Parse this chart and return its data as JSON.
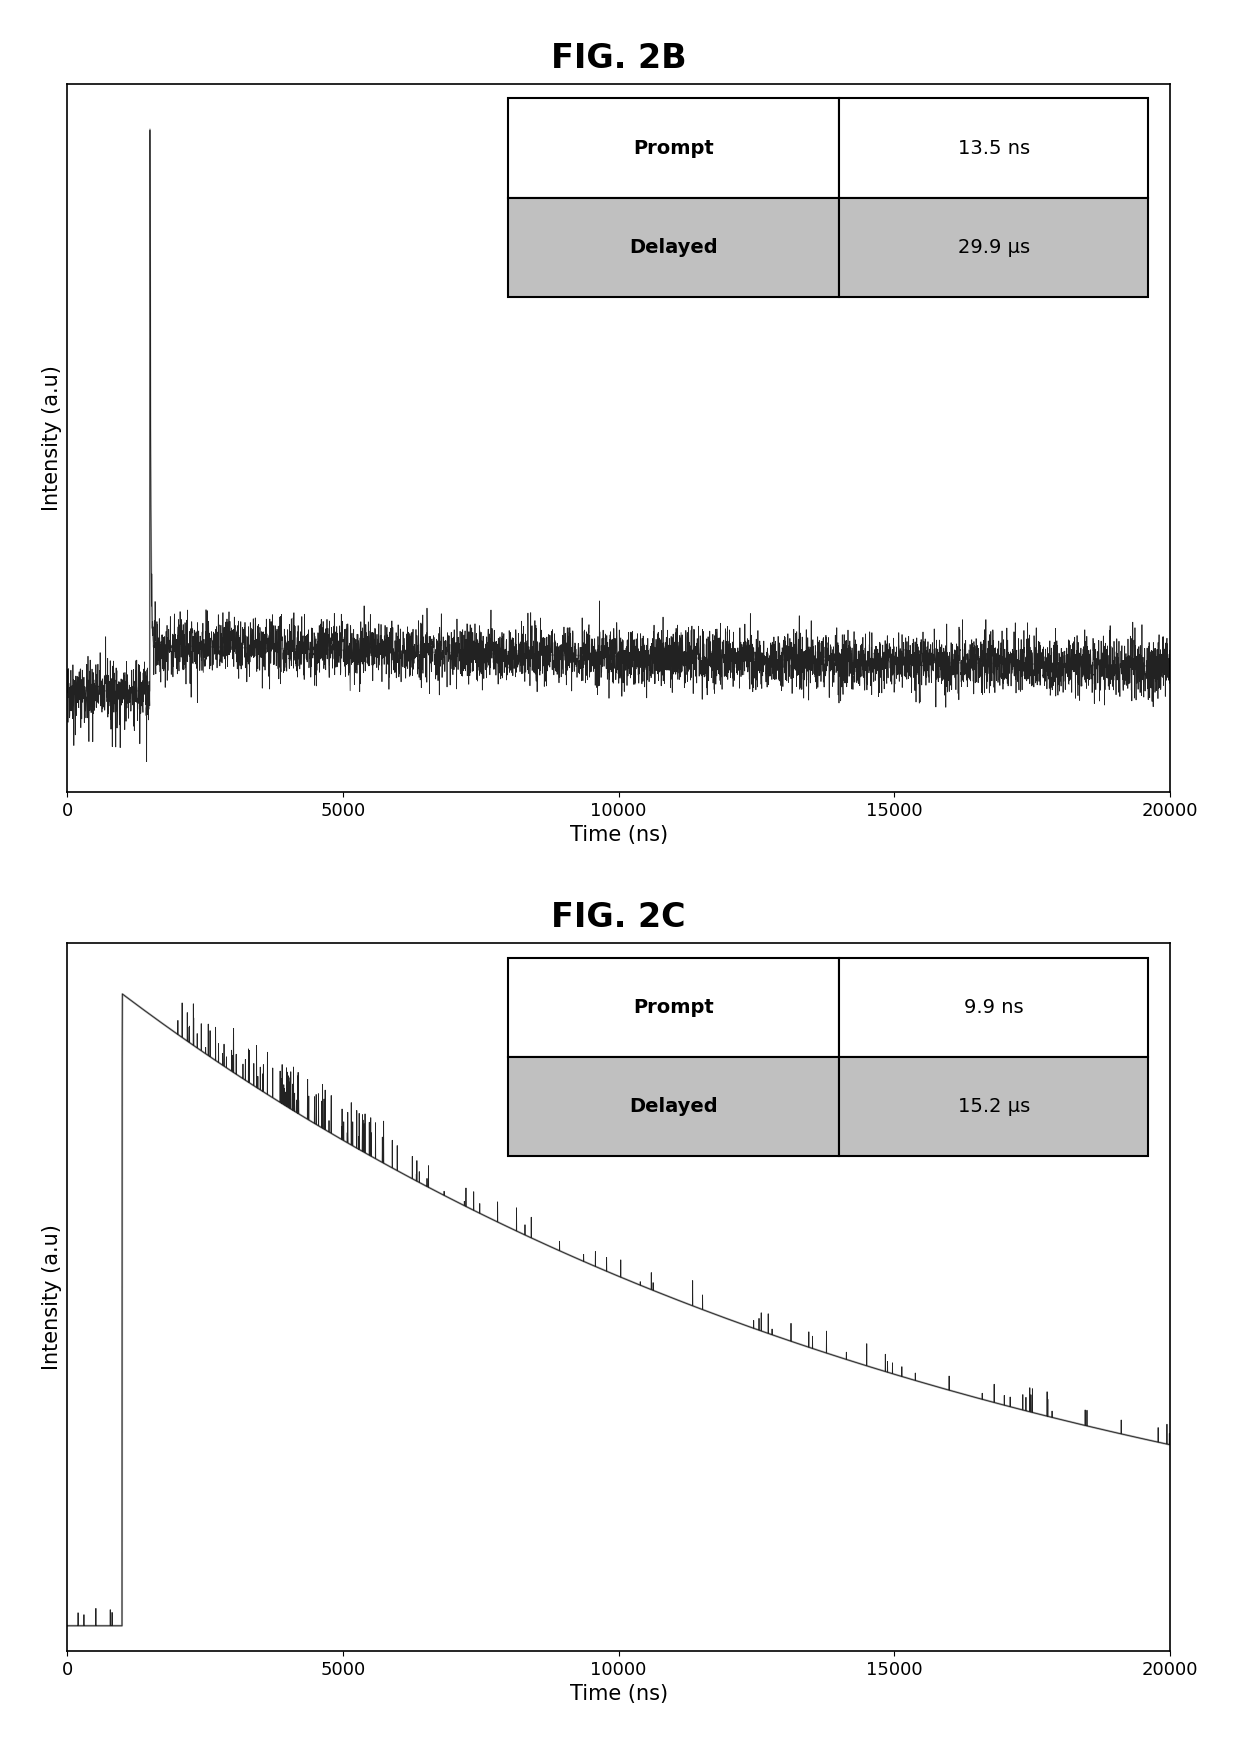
{
  "fig2b": {
    "title": "FIG. 2B",
    "xlabel": "Time (ns)",
    "ylabel": "Intensity (a.u)",
    "xlim": [
      0,
      20000
    ],
    "prompt_label": "Prompt",
    "prompt_value": "13.5 ns",
    "delayed_label": "Delayed",
    "delayed_value": "29.9 μs"
  },
  "fig2c": {
    "title": "FIG. 2C",
    "xlabel": "Time (ns)",
    "ylabel": "Intensity (a.u)",
    "xlim": [
      0,
      20000
    ],
    "prompt_label": "Prompt",
    "prompt_value": "9.9 ns",
    "delayed_label": "Delayed",
    "delayed_value": "15.2 μs"
  },
  "background_color": "#ffffff",
  "title_fontsize": 24,
  "axis_label_fontsize": 15,
  "tick_fontsize": 13,
  "table_fontsize": 14
}
